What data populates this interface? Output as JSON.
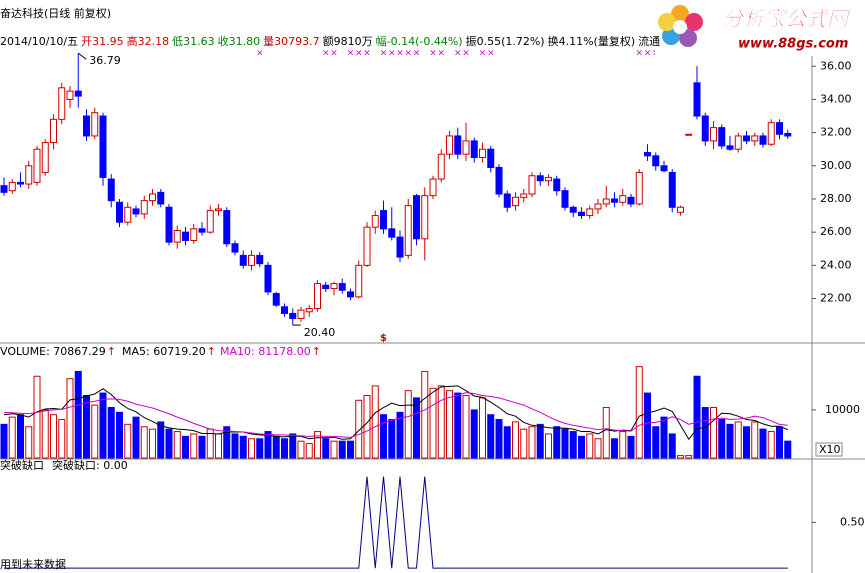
{
  "header": {
    "title": "奋达科技(日线 前复权)",
    "items": [
      {
        "text": "2014/10/10/五",
        "color": "#000000"
      },
      {
        "text": "开31.95",
        "color": "#d00000"
      },
      {
        "text": "高32.18",
        "color": "#d00000"
      },
      {
        "text": "低31.63",
        "color": "#008000"
      },
      {
        "text": "收31.80",
        "color": "#008000"
      },
      {
        "text": "量30793.7",
        "color": "#c00000"
      },
      {
        "text": "额9810万",
        "color": "#000000"
      },
      {
        "text": "幅-0.14(-0.44%)",
        "color": "#008000"
      },
      {
        "text": "振0.55(1.72%)",
        "color": "#000000"
      },
      {
        "text": "换4.11%(量复权)",
        "color": "#000000"
      },
      {
        "text": "流通",
        "color": "#000000"
      }
    ]
  },
  "logo": {
    "name": "分析家公式网",
    "url": "www.88gs.com"
  },
  "chart_data": [
    {
      "type": "candlestick",
      "up_color": "#d00000",
      "down_color": "#0000ff",
      "open": [
        28.8,
        28.5,
        29.0,
        28.9,
        29.0,
        29.6,
        31.4,
        32.8,
        34.0,
        34.5,
        33.0,
        31.8,
        33.0,
        29.2,
        27.8,
        26.6,
        27.4,
        27.1,
        27.9,
        28.4,
        27.5,
        25.4,
        26.0,
        25.5,
        26.2,
        26.0,
        27.3,
        27.3,
        25.3,
        24.6,
        24.0,
        24.6,
        24.0,
        22.3,
        21.5,
        21.1,
        20.8,
        21.2,
        21.4,
        22.8,
        22.6,
        22.9,
        22.4,
        22.1,
        24.0,
        26.3,
        27.3,
        26.2,
        25.7,
        24.6,
        28.2,
        25.6,
        28.2,
        29.2,
        30.7,
        31.8,
        30.7,
        31.5,
        30.5,
        31.0,
        29.9,
        28.3,
        27.6,
        28.1,
        28.3,
        29.4,
        29.1,
        29.2,
        28.5,
        27.5,
        27.2,
        27.0,
        27.4,
        27.7,
        28.0,
        27.8,
        28.1,
        27.7,
        30.8,
        30.6,
        30.0,
        29.6,
        27.2,
        31.9,
        35.0,
        33.0,
        31.5,
        32.3,
        31.2,
        31.0,
        31.8,
        31.5,
        31.8,
        31.3,
        32.6,
        31.95
      ],
      "high": [
        29.3,
        29.2,
        29.6,
        30.3,
        31.2,
        31.6,
        33.1,
        35.0,
        34.8,
        36.79,
        33.4,
        33.5,
        33.2,
        29.5,
        28.0,
        27.8,
        27.6,
        28.2,
        28.6,
        28.6,
        27.7,
        26.4,
        26.3,
        26.5,
        26.6,
        27.6,
        27.7,
        27.5,
        25.5,
        24.9,
        24.9,
        24.8,
        24.2,
        22.4,
        21.7,
        21.4,
        21.5,
        21.6,
        23.1,
        23.0,
        23.0,
        23.2,
        22.6,
        24.3,
        26.6,
        27.3,
        27.9,
        27.5,
        26.1,
        28.0,
        28.3,
        28.7,
        29.4,
        31.0,
        32.1,
        32.3,
        32.6,
        31.7,
        31.4,
        31.2,
        30.1,
        28.5,
        28.4,
        28.6,
        29.6,
        29.6,
        29.5,
        29.4,
        28.7,
        27.6,
        27.5,
        27.6,
        28.0,
        28.8,
        28.4,
        28.6,
        28.3,
        29.8,
        31.3,
        30.8,
        30.3,
        29.8,
        27.6,
        31.9,
        36.0,
        33.2,
        32.7,
        32.5,
        31.8,
        32.0,
        32.1,
        32.0,
        32.0,
        32.8,
        32.8,
        32.18
      ],
      "low": [
        28.2,
        28.3,
        28.7,
        28.6,
        28.8,
        29.4,
        31.0,
        32.5,
        33.5,
        33.5,
        31.5,
        31.6,
        28.8,
        27.5,
        26.3,
        26.4,
        26.9,
        26.8,
        27.6,
        27.5,
        25.2,
        25.0,
        25.2,
        25.3,
        25.8,
        25.9,
        27.0,
        25.1,
        24.6,
        23.8,
        23.7,
        23.9,
        22.2,
        21.5,
        20.9,
        20.4,
        20.6,
        20.9,
        21.2,
        22.4,
        22.2,
        22.3,
        21.9,
        22.0,
        23.9,
        25.9,
        25.9,
        25.5,
        24.2,
        24.4,
        25.2,
        24.3,
        28.0,
        29.0,
        30.4,
        30.4,
        30.3,
        30.2,
        30.2,
        29.6,
        28.1,
        27.2,
        27.3,
        27.8,
        28.1,
        28.8,
        28.8,
        28.2,
        27.3,
        26.9,
        26.8,
        26.8,
        27.1,
        27.5,
        27.5,
        27.6,
        27.5,
        27.6,
        30.3,
        29.7,
        29.6,
        27.2,
        27.0,
        31.9,
        32.8,
        31.2,
        31.0,
        31.0,
        30.9,
        30.8,
        31.3,
        31.2,
        31.1,
        31.2,
        31.6,
        31.63
      ],
      "close": [
        28.4,
        29.0,
        28.9,
        30.0,
        31.0,
        31.4,
        32.8,
        34.7,
        34.5,
        34.2,
        31.8,
        33.2,
        29.3,
        27.9,
        26.6,
        27.5,
        27.1,
        27.9,
        28.3,
        27.7,
        25.4,
        26.1,
        25.5,
        26.2,
        26.0,
        27.3,
        27.4,
        25.3,
        24.8,
        24.0,
        24.6,
        24.1,
        22.4,
        21.6,
        21.1,
        20.8,
        21.3,
        21.4,
        22.9,
        22.6,
        22.9,
        22.5,
        22.1,
        24.0,
        26.3,
        27.0,
        26.2,
        25.7,
        24.5,
        27.6,
        25.6,
        28.2,
        29.2,
        30.7,
        31.8,
        30.7,
        31.5,
        30.5,
        31.0,
        29.9,
        28.3,
        27.5,
        28.1,
        28.3,
        29.4,
        29.1,
        29.3,
        28.5,
        27.5,
        27.2,
        27.0,
        27.4,
        27.7,
        28.0,
        27.8,
        28.2,
        27.7,
        29.6,
        30.6,
        30.0,
        29.7,
        27.5,
        27.5,
        31.9,
        33.0,
        31.5,
        32.3,
        31.2,
        31.0,
        31.8,
        31.5,
        31.8,
        31.3,
        32.6,
        31.9,
        31.8
      ],
      "ylim": [
        19.5,
        37.1
      ],
      "yticks": [
        {
          "value": 22,
          "label": "22.00"
        },
        {
          "value": 24,
          "label": "24.00"
        },
        {
          "value": 26,
          "label": "26.00"
        },
        {
          "value": 28,
          "label": "28.00"
        },
        {
          "value": 30,
          "label": "30.00"
        },
        {
          "value": 32,
          "label": "32.00"
        },
        {
          "value": 34,
          "label": "34.00"
        },
        {
          "value": 36,
          "label": "36.00"
        }
      ],
      "annotations": [
        {
          "text": "36.79",
          "index": 9,
          "value": 36.79
        },
        {
          "text": "20.40",
          "index": 35,
          "value": 20.4
        }
      ],
      "signals": {
        "symbol": "×",
        "color": "#cc00cc",
        "index": [
          31,
          39,
          40,
          42,
          43,
          44,
          46,
          47,
          48,
          49,
          50,
          52,
          53,
          55,
          56,
          58,
          59,
          77,
          78,
          79
        ]
      },
      "dollar_mark": {
        "text": "$",
        "color": "#d00000",
        "index": 46
      }
    },
    {
      "type": "bar",
      "arrow": "↑",
      "arrow_color": "#d00000",
      "series": [
        {
          "name": "VOLUME: 70867.29",
          "color": "#000000",
          "values": [
            7000,
            8500,
            9000,
            6500,
            17000,
            10000,
            9000,
            8000,
            16500,
            18000,
            13000,
            11000,
            13500,
            10500,
            9500,
            7000,
            8500,
            6500,
            6000,
            7500,
            6000,
            5500,
            4500,
            5000,
            4500,
            6000,
            5000,
            6500,
            5000,
            4500,
            4000,
            4000,
            5500,
            4500,
            4000,
            5000,
            3500,
            3000,
            5500,
            4000,
            3500,
            3500,
            3500,
            12000,
            13000,
            15000,
            9000,
            8000,
            9500,
            14000,
            12500,
            18000,
            14500,
            15000,
            14000,
            13500,
            13000,
            10000,
            12500,
            9000,
            8000,
            6500,
            7500,
            6000,
            6500,
            7000,
            5000,
            6500,
            6000,
            5500,
            4500,
            5000,
            4000,
            10500,
            4000,
            5500,
            4500,
            19000,
            13500,
            6500,
            8500,
            5000,
            500,
            500,
            17000,
            10500,
            10500,
            8000,
            7000,
            7500,
            6500,
            7500,
            6000,
            5500,
            6500,
            3500
          ]
        },
        {
          "name": "MA5: 60719.20",
          "color": "#000000",
          "values": [
            9000,
            9200,
            9000,
            8500,
            9600,
            10200,
            10300,
            10100,
            12100,
            12300,
            12900,
            13300,
            14400,
            13200,
            11500,
            10300,
            9600,
            8400,
            7600,
            6700,
            6300,
            6000,
            5900,
            5700,
            5100,
            5100,
            5000,
            5400,
            5400,
            5400,
            5000,
            4800,
            4700,
            4500,
            4400,
            4600,
            4500,
            4000,
            4200,
            4200,
            4300,
            3900,
            4000,
            5700,
            7300,
            9400,
            10500,
            11400,
            10900,
            11000,
            11000,
            12400,
            13700,
            14800,
            14900,
            15000,
            14000,
            12900,
            12600,
            11600,
            10500,
            9200,
            8700,
            7400,
            6800,
            6600,
            6300,
            6200,
            6200,
            6000,
            5500,
            5500,
            5000,
            5900,
            5600,
            5800,
            5700,
            8700,
            9300,
            9800,
            10400,
            9700,
            6800,
            3900,
            6100,
            6300,
            7800,
            9300,
            9200,
            8700,
            8000,
            7800,
            7100,
            6600,
            6600,
            5900
          ]
        },
        {
          "name": "MA10: 81178.00",
          "color": "#cc00cc",
          "values": [
            9500,
            9400,
            9300,
            9200,
            9500,
            9800,
            10000,
            10100,
            10600,
            11000,
            11500,
            11800,
            12200,
            12300,
            12200,
            11800,
            11200,
            10800,
            10400,
            9800,
            9200,
            8500,
            7900,
            7200,
            6600,
            6000,
            5700,
            5600,
            5500,
            5400,
            5200,
            5000,
            4900,
            4800,
            4800,
            4700,
            4600,
            4500,
            4600,
            4500,
            4500,
            4400,
            4300,
            4900,
            5600,
            6500,
            7300,
            7900,
            8300,
            8600,
            9300,
            10000,
            11000,
            12000,
            12600,
            13000,
            13600,
            13400,
            13000,
            12800,
            12500,
            12000,
            11500,
            11000,
            10200,
            9500,
            8600,
            7800,
            7200,
            6800,
            6500,
            6200,
            5900,
            6100,
            5800,
            5700,
            5600,
            6800,
            7300,
            7400,
            7800,
            8600,
            8000,
            7000,
            7500,
            7800,
            8100,
            8300,
            8000,
            8100,
            8300,
            8700,
            8400,
            7700,
            7000,
            6800
          ]
        }
      ],
      "ylim": [
        0,
        23500
      ],
      "yticks": [
        10000
      ],
      "scale_label": "X10"
    },
    {
      "type": "line",
      "title": "突破缺口",
      "note": "用到未来数据",
      "series": [
        {
          "name": "突破缺口: 0.00",
          "color": "#000080",
          "values": [
            0,
            0,
            0,
            0,
            0,
            0,
            0,
            0,
            0,
            0,
            0,
            0,
            0,
            0,
            0,
            0,
            0,
            0,
            0,
            0,
            0,
            0,
            0,
            0,
            0,
            0,
            0,
            0,
            0,
            0,
            0,
            0,
            0,
            0,
            0,
            0,
            0,
            0,
            0,
            0,
            0,
            0,
            0,
            0,
            1,
            0,
            1,
            0,
            1,
            0,
            0,
            1,
            0,
            0,
            0,
            0,
            0,
            0,
            0,
            0,
            0,
            0,
            0,
            0,
            0,
            0,
            0,
            0,
            0,
            0,
            0,
            0,
            0,
            0,
            0,
            0,
            0,
            0,
            0,
            0,
            0,
            0,
            0,
            0,
            0,
            0,
            0,
            0,
            0,
            0,
            0,
            0,
            0,
            0,
            0,
            0
          ]
        }
      ],
      "ylim": [
        -0.02,
        1.17
      ],
      "yticks": [
        {
          "value": 0.5,
          "label": "0.50"
        }
      ]
    }
  ]
}
